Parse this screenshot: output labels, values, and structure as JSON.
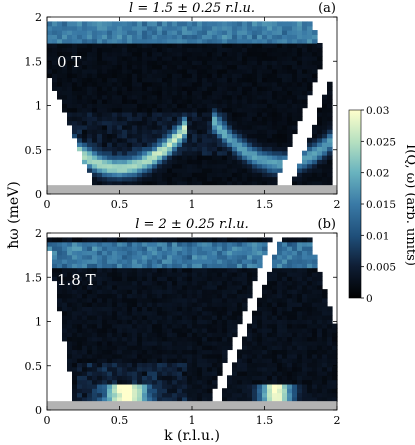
{
  "chart_data": [
    {
      "type": "heatmap",
      "panel_label": "(a)",
      "title": "l = 1.5 ± 0.25 r.l.u.",
      "field_label": "0 T",
      "xlabel": "",
      "ylabel": "ħω (meV)",
      "xlim": [
        0,
        2
      ],
      "ylim": [
        0,
        2
      ],
      "x_ticks": [
        "0",
        "0.5",
        "1",
        "1.5",
        "2"
      ],
      "y_ticks": [
        "0",
        "0.5",
        "1",
        "1.5",
        "2"
      ],
      "excitations": [
        {
          "k": [
            0.1,
            0.5,
            0.9
          ],
          "energy": [
            0.9,
            0.3,
            0.9
          ]
        },
        {
          "k": [
            1.3,
            1.6,
            1.9
          ],
          "energy": [
            0.9,
            0.35,
            0.9
          ]
        }
      ]
    },
    {
      "type": "heatmap",
      "panel_label": "(b)",
      "title": "l = 2 ± 0.25 r.l.u.",
      "field_label": "1.8 T",
      "xlabel": "k (r.l.u.)",
      "ylabel": "ħω (meV)",
      "xlim": [
        0,
        2
      ],
      "ylim": [
        0,
        2
      ],
      "x_ticks": [
        "0",
        "0.5",
        "1",
        "1.5",
        "2"
      ],
      "y_ticks": [
        "0",
        "0.5",
        "1",
        "1.5",
        "2"
      ],
      "excitations": [
        {
          "k": [
            0.35,
            0.55,
            0.75
          ],
          "energy": [
            0.2,
            0.1,
            0.2
          ]
        },
        {
          "k": [
            1.4,
            1.55,
            1.7
          ],
          "energy": [
            0.2,
            0.1,
            0.2
          ]
        }
      ]
    }
  ],
  "colorbar": {
    "label": "I(Q, ω) (arb. units)",
    "range": [
      0,
      0.03
    ],
    "ticks": [
      "0",
      "0.005",
      "0.01",
      "0.015",
      "0.02",
      "0.025",
      "0.03"
    ],
    "colors": [
      "#000000",
      "#0f1e35",
      "#1f4f7a",
      "#3a7aa6",
      "#6ab4bf",
      "#b5e0c0",
      "#ffffcc"
    ]
  }
}
